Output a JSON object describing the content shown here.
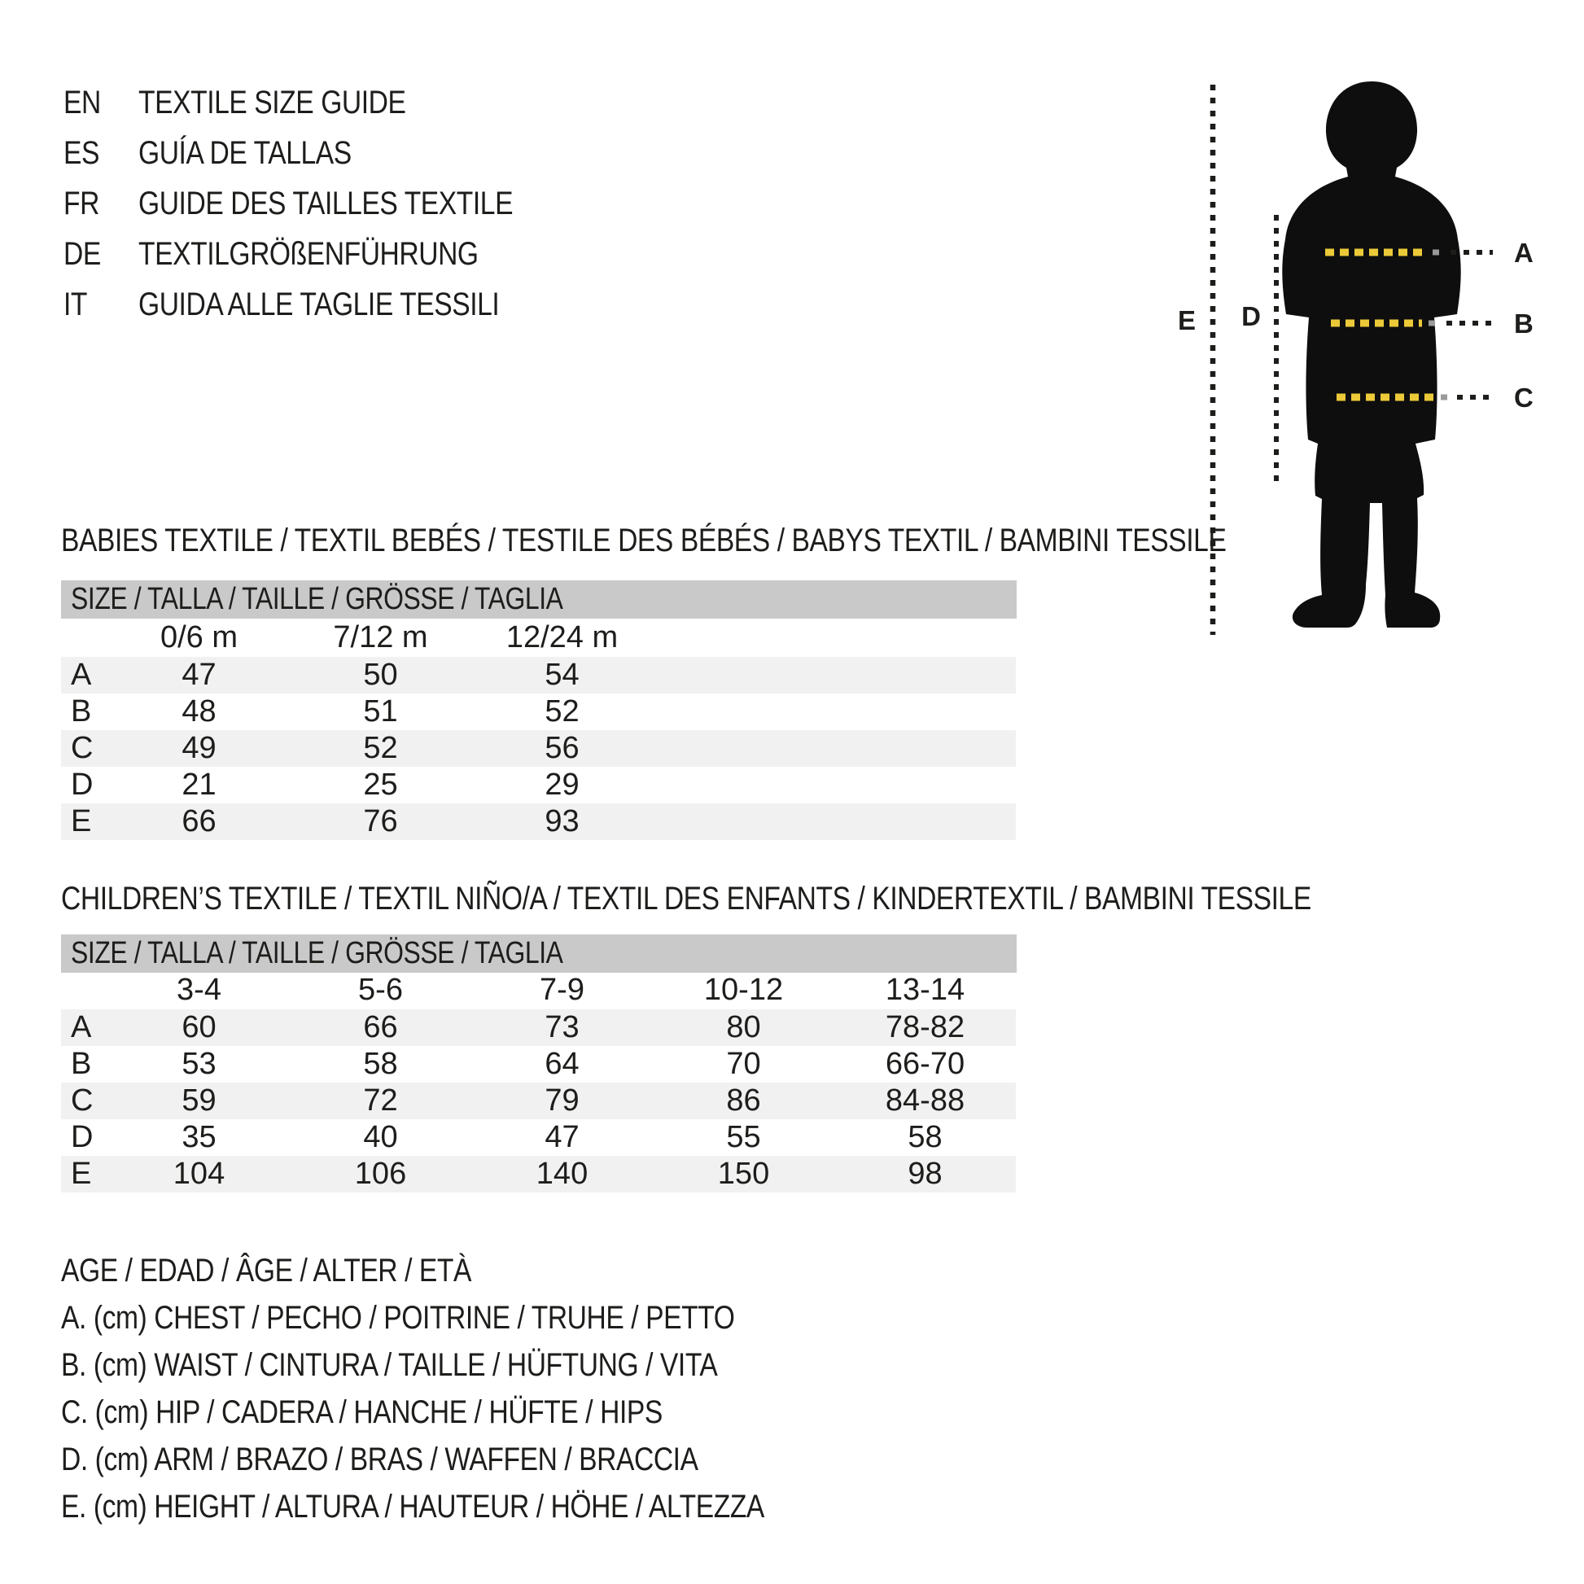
{
  "colors": {
    "ink": "#1d1d1b",
    "band_gray": "#c9c9c9",
    "row_gray": "#f1f1f1",
    "accent_yellow": "#ecc938"
  },
  "header": {
    "languages": [
      {
        "code": "EN",
        "title": "TEXTILE SIZE GUIDE"
      },
      {
        "code": "ES",
        "title": "GUÍA DE TALLAS"
      },
      {
        "code": "FR",
        "title": "GUIDE DES TAILLES TEXTILE"
      },
      {
        "code": "DE",
        "title": "TEXTILGRÖßENFÜHRUNG"
      },
      {
        "code": "IT",
        "title": "GUIDA ALLE TAGLIE TESSILI"
      }
    ]
  },
  "figure": {
    "measure_a": "A",
    "measure_b": "B",
    "measure_c": "C",
    "measure_d": "D",
    "measure_e": "E"
  },
  "babies_table": {
    "title": "BABIES TEXTILE / TEXTIL BEBÉS / TESTILE DES BÉBÉS / BABYS TEXTIL / BAMBINI TESSILE",
    "size_header": "SIZE / TALLA / TAILLE / GRÖSSE / TAGLIA",
    "columns": [
      "0/6 m",
      "7/12 m",
      "12/24 m"
    ],
    "rows": [
      {
        "label": "A",
        "values": [
          "47",
          "50",
          "54"
        ]
      },
      {
        "label": "B",
        "values": [
          "48",
          "51",
          "52"
        ]
      },
      {
        "label": "C",
        "values": [
          "49",
          "52",
          "56"
        ]
      },
      {
        "label": "D",
        "values": [
          "21",
          "25",
          "29"
        ]
      },
      {
        "label": "E",
        "values": [
          "66",
          "76",
          "93"
        ]
      }
    ]
  },
  "children_table": {
    "title": "CHILDREN’S TEXTILE / TEXTIL NIÑO/A / TEXTIL DES ENFANTS / KINDERTEXTIL / BAMBINI TESSILE",
    "size_header": "SIZE / TALLA / TAILLE / GRÖSSE / TAGLIA",
    "columns": [
      "3-4",
      "5-6",
      "7-9",
      "10-12",
      "13-14"
    ],
    "rows": [
      {
        "label": "A",
        "values": [
          "60",
          "66",
          "73",
          "80",
          "78-82"
        ]
      },
      {
        "label": "B",
        "values": [
          "53",
          "58",
          "64",
          "70",
          "66-70"
        ]
      },
      {
        "label": "C",
        "values": [
          "59",
          "72",
          "79",
          "86",
          "84-88"
        ]
      },
      {
        "label": "D",
        "values": [
          "35",
          "40",
          "47",
          "55",
          "58"
        ]
      },
      {
        "label": "E",
        "values": [
          "104",
          "106",
          "140",
          "150",
          "98"
        ]
      }
    ]
  },
  "legend": {
    "lines": [
      "AGE / EDAD / ÂGE / ALTER / ETÀ",
      "A. (cm) CHEST / PECHO / POITRINE / TRUHE / PETTO",
      "B. (cm) WAIST / CINTURA / TAILLE / HÜFTUNG / VITA",
      "C. (cm) HIP / CADERA / HANCHE / HÜFTE / HIPS",
      "D. (cm) ARM / BRAZO / BRAS / WAFFEN / BRACCIA",
      "E. (cm) HEIGHT / ALTURA / HAUTEUR / HÖHE / ALTEZZA"
    ]
  }
}
